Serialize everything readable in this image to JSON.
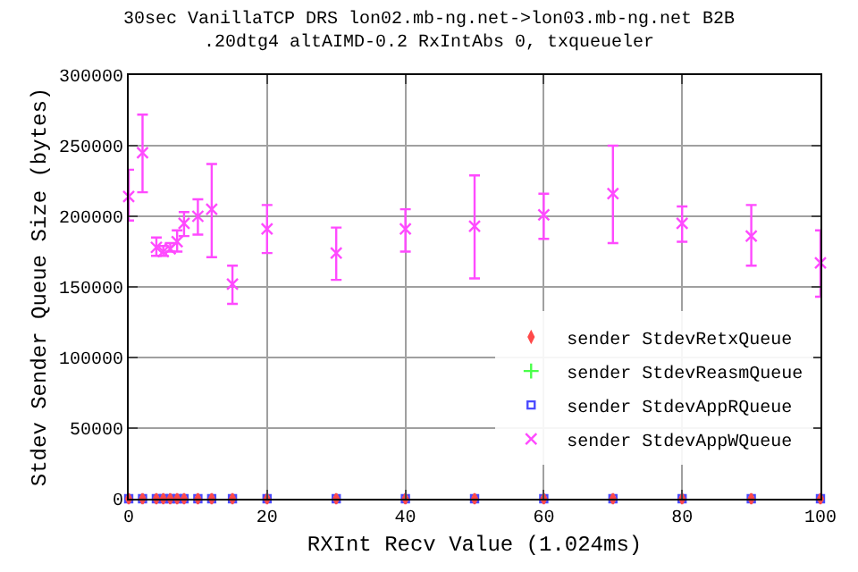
{
  "chart_data": {
    "type": "scatter",
    "title": "30sec VanillaTCP DRS lon02.mb-ng.net->lon03.mb-ng.net B2B",
    "subtitle": ".20dtg4 altAIMD-0.2 RxIntAbs 0, txqueueler",
    "xlabel": "RXInt Recv Value (1.024ms)",
    "ylabel": "Stdev Sender Queue Size (bytes)",
    "x": [
      0,
      2,
      4,
      5,
      6,
      7,
      8,
      10,
      12,
      15,
      20,
      30,
      40,
      50,
      60,
      70,
      80,
      90,
      100
    ],
    "series": [
      {
        "name": "sender StdevRetxQueue",
        "color": "#ff4a4a",
        "marker": "diamond",
        "values": [
          0,
          0,
          0,
          0,
          0,
          0,
          0,
          0,
          0,
          0,
          0,
          0,
          0,
          0,
          0,
          0,
          0,
          0,
          0
        ]
      },
      {
        "name": "sender StdevReasmQueue",
        "color": "#4aff4a",
        "marker": "cross",
        "values": [
          null,
          null,
          null,
          null,
          null,
          null,
          null,
          null,
          null,
          null,
          null,
          null,
          null,
          null,
          null,
          null,
          null,
          null,
          null
        ]
      },
      {
        "name": "sender StdevAppRQueue",
        "color": "#4a4aff",
        "marker": "square",
        "values": [
          0,
          0,
          0,
          0,
          0,
          0,
          0,
          0,
          0,
          0,
          0,
          0,
          0,
          0,
          0,
          0,
          0,
          0,
          0
        ]
      },
      {
        "name": "sender StdevAppWQueue",
        "color": "#ff4aff",
        "marker": "x",
        "values": [
          214000,
          245000,
          178000,
          175000,
          177000,
          182000,
          195000,
          200000,
          205000,
          152000,
          191000,
          174000,
          191000,
          193000,
          201000,
          216000,
          195000,
          186000,
          167000
        ],
        "errors": [
          [
            197000,
            233000
          ],
          [
            217000,
            272000
          ],
          [
            172000,
            185000
          ],
          [
            172000,
            179000
          ],
          [
            175000,
            181000
          ],
          [
            175000,
            190000
          ],
          [
            186000,
            203000
          ],
          [
            187000,
            212000
          ],
          [
            171000,
            237000
          ],
          [
            138000,
            165000
          ],
          [
            174000,
            208000
          ],
          [
            155000,
            192000
          ],
          [
            175000,
            205000
          ],
          [
            156000,
            229000
          ],
          [
            184000,
            216000
          ],
          [
            181000,
            250000
          ],
          [
            182000,
            207000
          ],
          [
            165000,
            208000
          ],
          [
            143000,
            190000
          ]
        ]
      }
    ],
    "xlim": [
      0,
      100
    ],
    "xticks": [
      0,
      20,
      40,
      60,
      80,
      100
    ],
    "ylim": [
      0,
      300000
    ],
    "yticks": [
      0,
      50000,
      100000,
      150000,
      200000,
      250000,
      300000
    ],
    "grid": true,
    "legend": "bottom right"
  }
}
